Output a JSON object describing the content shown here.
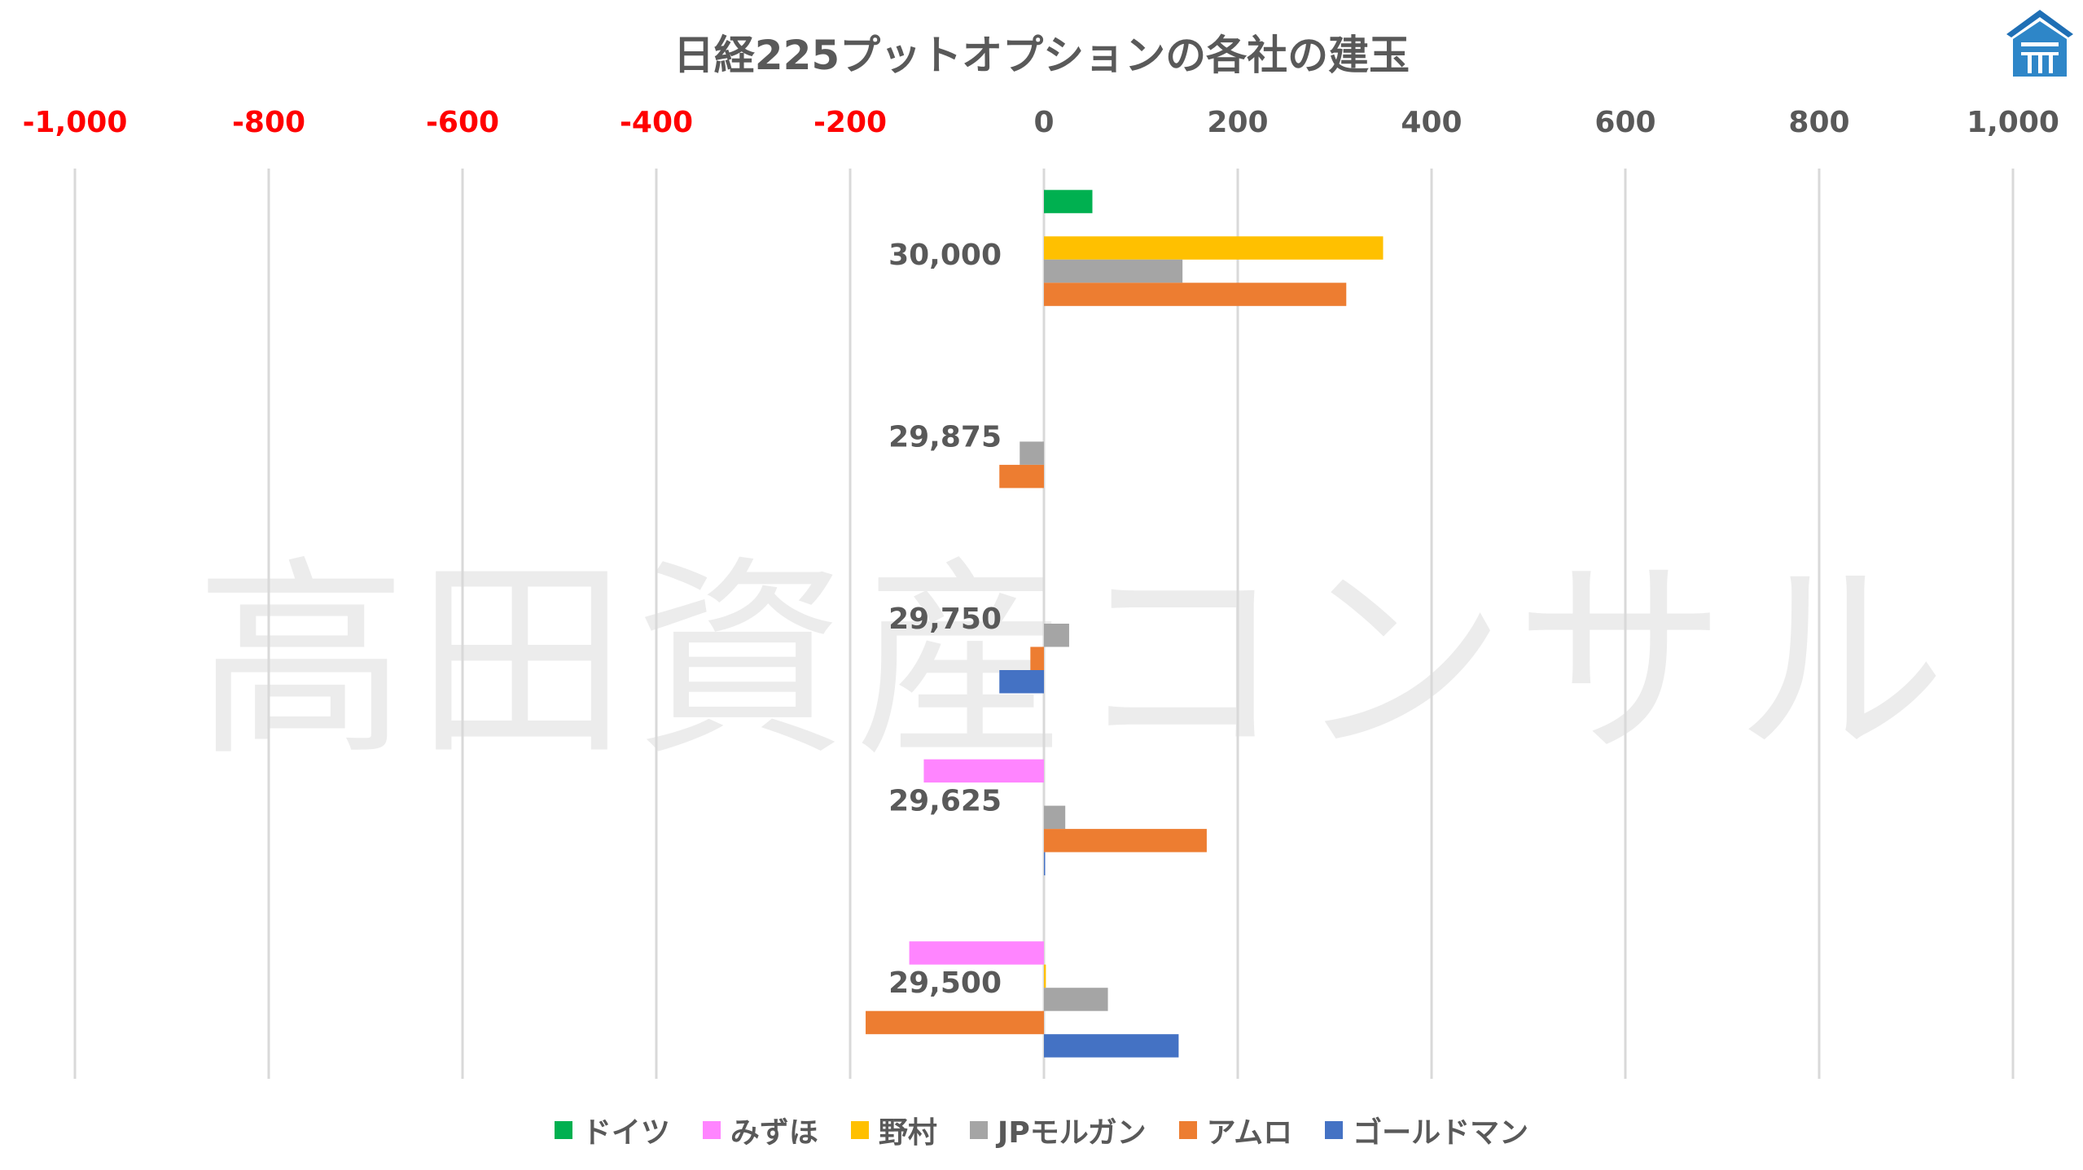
{
  "chart_data": {
    "type": "bar",
    "orientation": "horizontal",
    "title": "日経225プットオプションの各社の建玉",
    "xlim": [
      -1000,
      1000
    ],
    "x_ticks": [
      -1000,
      -800,
      -600,
      -400,
      -200,
      0,
      200,
      400,
      600,
      800,
      1000
    ],
    "x_tick_labels": [
      "-1,000",
      "-800",
      "-600",
      "-400",
      "-200",
      "0",
      "200",
      "400",
      "600",
      "800",
      "1,000"
    ],
    "negative_tick_color": "#FF0000",
    "positive_tick_color": "#595959",
    "categories": [
      "30,000",
      "29,875",
      "29,750",
      "29,625",
      "29,500"
    ],
    "grid": true,
    "legend_position": "bottom",
    "series": [
      {
        "name": "ドイツ",
        "color": "#00B050",
        "values": [
          50,
          0,
          0,
          0,
          0
        ]
      },
      {
        "name": "みずほ",
        "color": "#FF85FF",
        "values": [
          0,
          0,
          0,
          -124,
          -139
        ]
      },
      {
        "name": "野村",
        "color": "#FFC000",
        "values": [
          350,
          0,
          0,
          0,
          2
        ]
      },
      {
        "name": "JPモルガン",
        "color": "#A5A5A5",
        "values": [
          143,
          -25,
          26,
          22,
          66
        ]
      },
      {
        "name": "アムロ",
        "color": "#ED7D31",
        "values": [
          312,
          -46,
          -14,
          168,
          -184
        ]
      },
      {
        "name": "ゴールドマン",
        "color": "#4472C4",
        "values": [
          0,
          0,
          -46,
          1,
          139
        ]
      }
    ]
  },
  "watermark": "高田資産コンサル",
  "logo_color": "#1F6FB5"
}
